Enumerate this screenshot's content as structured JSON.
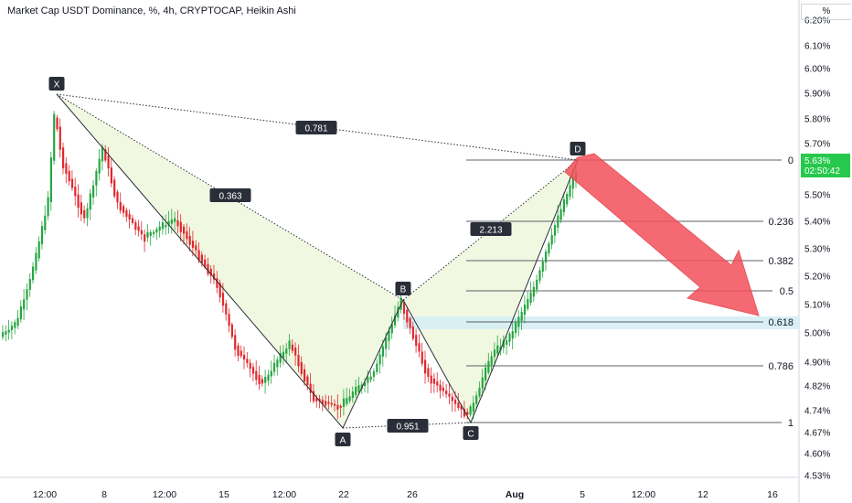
{
  "header": {
    "title": "Market Cap USDT Dominance, %, 4h, CRYPTOCAP, Heikin Ashi",
    "unit_label": "%"
  },
  "price_badge": {
    "value": "5.63%",
    "countdown": "02:50:42",
    "color": "#26c94b"
  },
  "colors": {
    "up": "#26a641",
    "down": "#e0282e",
    "pattern_fill": "#f3f9e6",
    "arrow": "#f4515a",
    "zone": "#d6eef4"
  },
  "chart_data": {
    "type": "candlestick",
    "title": "Market Cap USDT Dominance, %, 4h, CRYPTOCAP, Heikin Ashi",
    "y_ticks": [
      "6.20%",
      "6.10%",
      "6.00%",
      "5.90%",
      "5.80%",
      "5.70%",
      "5.50%",
      "5.40%",
      "5.30%",
      "5.20%",
      "5.10%",
      "5.00%",
      "4.90%",
      "4.82%",
      "4.74%",
      "4.67%",
      "4.60%",
      "4.53%"
    ],
    "x_ticks": [
      "12:00",
      "8",
      "12:00",
      "15",
      "12:00",
      "22",
      "26",
      "Aug",
      "5",
      "12:00",
      "12",
      "16"
    ],
    "pattern_points": [
      {
        "label": "X",
        "value": 5.9
      },
      {
        "label": "A",
        "value": 4.69
      },
      {
        "label": "B",
        "value": 5.13
      },
      {
        "label": "C",
        "value": 4.7
      },
      {
        "label": "D",
        "value": 5.63
      }
    ],
    "ratios": [
      "0.781",
      "0.363",
      "2.213",
      "0.951"
    ],
    "fib_levels": [
      "0",
      "0.236",
      "0.382",
      "0.5",
      "0.618",
      "0.786",
      "1"
    ],
    "last_price": "5.63%"
  }
}
